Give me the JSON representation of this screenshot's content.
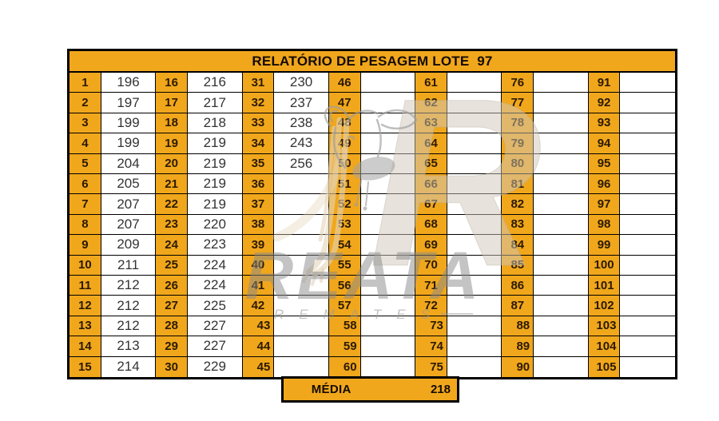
{
  "header": {
    "title": "RELATÓRIO DE PESAGEM LOTE  97"
  },
  "grid": {
    "columns": [
      {
        "nums": [
          "1",
          "2",
          "3",
          "4",
          "5",
          "6",
          "7",
          "8",
          "9",
          "10",
          "11",
          "12",
          "13",
          "14",
          "15"
        ],
        "vals": [
          "196",
          "197",
          "199",
          "199",
          "204",
          "205",
          "207",
          "207",
          "209",
          "211",
          "212",
          "212",
          "212",
          "213",
          "214"
        ]
      },
      {
        "nums": [
          "16",
          "17",
          "18",
          "19",
          "20",
          "21",
          "22",
          "23",
          "24",
          "25",
          "26",
          "27",
          "28",
          "29",
          "30"
        ],
        "vals": [
          "216",
          "217",
          "218",
          "219",
          "219",
          "219",
          "219",
          "220",
          "223",
          "224",
          "224",
          "225",
          "227",
          "227",
          "229"
        ]
      },
      {
        "nums": [
          "31",
          "32",
          "33",
          "34",
          "35",
          "36",
          "37",
          "38",
          "39",
          "40",
          "41",
          "42",
          "43",
          "44",
          "45"
        ],
        "vals": [
          "230",
          "237",
          "238",
          "243",
          "256",
          "",
          "",
          "",
          "",
          "",
          "",
          "",
          "",
          "",
          ""
        ]
      },
      {
        "nums": [
          "46",
          "47",
          "48",
          "49",
          "50",
          "51",
          "52",
          "53",
          "54",
          "55",
          "56",
          "57",
          "58",
          "59",
          "60"
        ],
        "vals": [
          "",
          "",
          "",
          "",
          "",
          "",
          "",
          "",
          "",
          "",
          "",
          "",
          "",
          "",
          ""
        ]
      },
      {
        "nums": [
          "61",
          "62",
          "63",
          "64",
          "65",
          "66",
          "67",
          "68",
          "69",
          "70",
          "71",
          "72",
          "73",
          "74",
          "75"
        ],
        "vals": [
          "",
          "",
          "",
          "",
          "",
          "",
          "",
          "",
          "",
          "",
          "",
          "",
          "",
          "",
          ""
        ]
      },
      {
        "nums": [
          "76",
          "77",
          "78",
          "79",
          "80",
          "81",
          "82",
          "83",
          "84",
          "85",
          "86",
          "87",
          "88",
          "89",
          "90"
        ],
        "vals": [
          "",
          "",
          "",
          "",
          "",
          "",
          "",
          "",
          "",
          "",
          "",
          "",
          "",
          "",
          ""
        ]
      },
      {
        "nums": [
          "91",
          "92",
          "93",
          "94",
          "95",
          "96",
          "97",
          "98",
          "99",
          "100",
          "101",
          "102",
          "103",
          "104",
          "105"
        ],
        "vals": [
          "",
          "",
          "",
          "",
          "",
          "",
          "",
          "",
          "",
          "",
          "",
          "",
          "",
          "",
          ""
        ]
      }
    ]
  },
  "footer": {
    "label": "MÉDIA",
    "value": "218"
  },
  "watermark": {
    "monogram": "R",
    "brand": "REATA",
    "sub_brand": "REMATES"
  },
  "colors": {
    "orange": "#F1A71C",
    "border": "#000000",
    "number_text": "#2B1A02",
    "value_text": "#333333",
    "watermark_gray": "#8F8F8F",
    "watermark_tan": "#E4D4B8"
  }
}
